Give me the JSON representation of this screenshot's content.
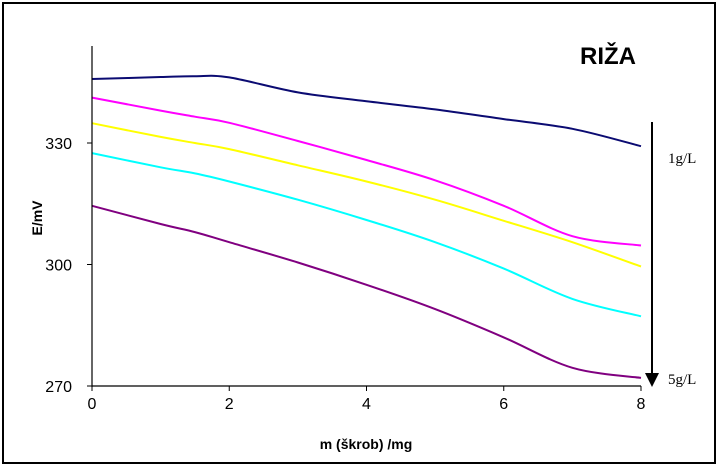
{
  "chart_data": {
    "type": "line",
    "title": "RIŽA",
    "xlabel": "m (škrob) /mg",
    "ylabel": "E/mV",
    "xlim": [
      0,
      8
    ],
    "ylim": [
      270,
      350
    ],
    "x_ticks": [
      "0",
      "2",
      "4",
      "6",
      "8"
    ],
    "y_ticks": [
      "270",
      "300",
      "330"
    ],
    "x": [
      0,
      1,
      1.5,
      2,
      3,
      4,
      5,
      6,
      7,
      8
    ],
    "series": [
      {
        "color": "#0b0b72",
        "values": [
          345.8,
          346.3,
          346.5,
          346.2,
          342.5,
          340.3,
          338.3,
          335.9,
          333.5,
          329.2
        ]
      },
      {
        "color": "#ff00ff",
        "values": [
          341.2,
          338.0,
          336.5,
          335.0,
          330.5,
          325.8,
          320.8,
          314.5,
          307.0,
          304.7
        ]
      },
      {
        "color": "#ffff00",
        "values": [
          334.9,
          331.5,
          330.0,
          328.5,
          324.5,
          320.5,
          316.0,
          310.8,
          305.5,
          299.5
        ]
      },
      {
        "color": "#00ffff",
        "values": [
          327.5,
          324.0,
          322.5,
          320.5,
          316.0,
          311.0,
          305.5,
          299.0,
          291.5,
          287.2
        ]
      },
      {
        "color": "#800080",
        "values": [
          314.5,
          310.0,
          308.0,
          305.5,
          300.5,
          295.0,
          289.0,
          282.0,
          274.5,
          272.0
        ]
      }
    ],
    "annotations": [
      "1g/L",
      "5g/L"
    ],
    "grid": false,
    "legend": "none"
  }
}
